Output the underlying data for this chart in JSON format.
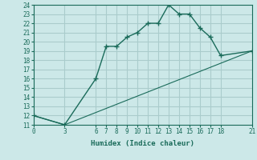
{
  "xlabel": "Humidex (Indice chaleur)",
  "ylabel": "",
  "bg_color": "#cce8e8",
  "grid_color": "#aacccc",
  "line_color": "#1a6b5a",
  "xlim": [
    0,
    21
  ],
  "ylim": [
    11,
    24
  ],
  "xticks": [
    0,
    3,
    6,
    7,
    8,
    9,
    10,
    11,
    12,
    13,
    14,
    15,
    16,
    17,
    18,
    21
  ],
  "yticks": [
    11,
    12,
    13,
    14,
    15,
    16,
    17,
    18,
    19,
    20,
    21,
    22,
    23,
    24
  ],
  "curve1_x": [
    0,
    3,
    6,
    7,
    8,
    9,
    10,
    11,
    12,
    13,
    14,
    15,
    16,
    17,
    18,
    21
  ],
  "curve1_y": [
    12,
    11,
    16,
    19.5,
    19.5,
    20.5,
    21,
    22,
    22,
    24,
    23,
    23,
    21.5,
    20.5,
    18.5,
    19
  ],
  "curve2_x": [
    0,
    3,
    21
  ],
  "curve2_y": [
    12,
    11,
    19
  ]
}
